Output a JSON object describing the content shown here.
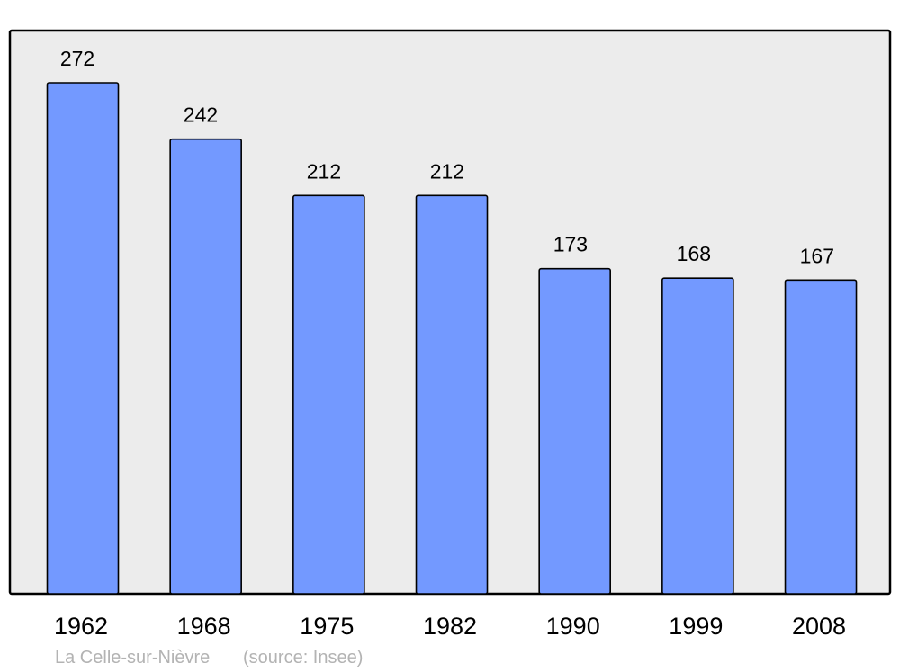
{
  "chart_data": {
    "type": "bar",
    "categories": [
      "1962",
      "1968",
      "1975",
      "1982",
      "1990",
      "1999",
      "2008"
    ],
    "values": [
      272,
      242,
      212,
      212,
      173,
      168,
      167
    ],
    "title": "",
    "xlabel": "",
    "ylabel": "",
    "ylim": [
      0,
      300
    ],
    "grid": false,
    "data_labels": true,
    "caption": {
      "place": "La Celle-sur-Nièvre",
      "source": "(source: Insee)"
    },
    "colors": {
      "bar": "#7399ff",
      "plot_background": "#ececec",
      "border": "#000000",
      "caption": "#b3b3b3"
    }
  }
}
